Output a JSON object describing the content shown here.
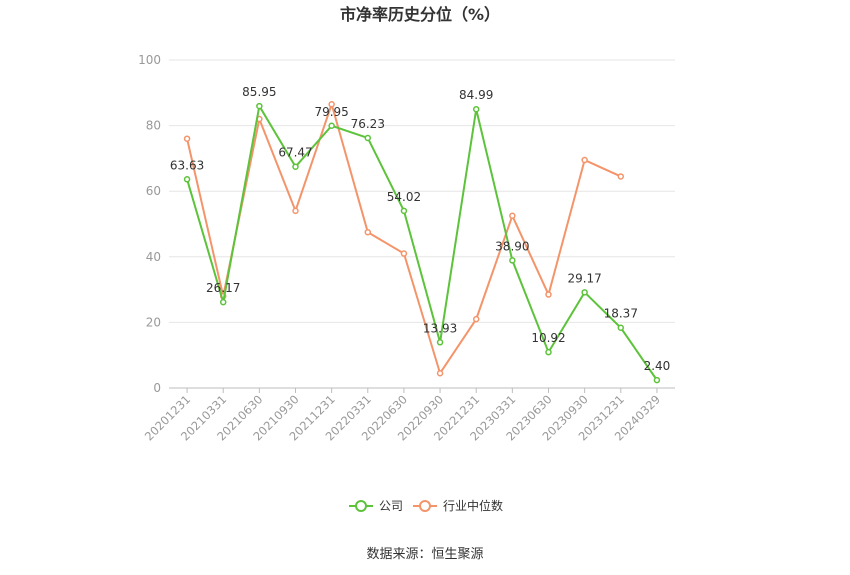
{
  "chart_data": {
    "type": "line",
    "title": "市净率历史分位（%）",
    "x": [
      "20201231",
      "20210331",
      "20210630",
      "20210930",
      "20211231",
      "20220331",
      "20220630",
      "20220930",
      "20221231",
      "20230331",
      "20230630",
      "20230930",
      "20231231",
      "20240329"
    ],
    "ylim": [
      0,
      100
    ],
    "yticks": [
      0,
      20,
      40,
      60,
      80,
      100
    ],
    "grid": true,
    "legend_position": "bottom",
    "series": [
      {
        "name": "公司",
        "color": "#5cc33a",
        "values": [
          63.63,
          26.17,
          85.95,
          67.47,
          79.95,
          76.23,
          54.02,
          13.93,
          84.99,
          38.9,
          10.92,
          29.17,
          18.37,
          2.4
        ],
        "labels": [
          "63.63",
          "26.17",
          "85.95",
          "67.47",
          "79.95",
          "76.23",
          "54.02",
          "13.93",
          "84.99",
          "38.90",
          "10.92",
          "29.17",
          "18.37",
          "2.40"
        ]
      },
      {
        "name": "行业中位数",
        "color": "#f4946a",
        "values": [
          76,
          28,
          82,
          54,
          86.5,
          47.5,
          41,
          4.5,
          21,
          52.5,
          28.5,
          69.5,
          64.5,
          null
        ]
      }
    ],
    "source": "数据来源：恒生聚源"
  }
}
